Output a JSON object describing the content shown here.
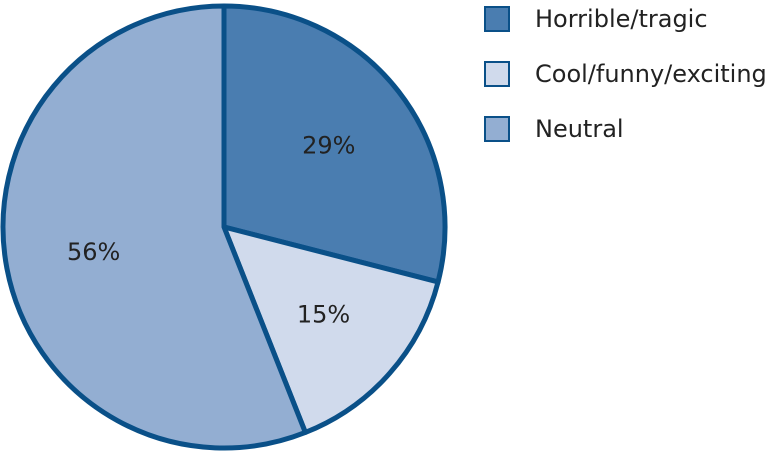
{
  "chart_data": {
    "type": "pie",
    "title": "",
    "slices": [
      {
        "label": "Horrible/tragic",
        "value": 29,
        "display": "29%",
        "color": "#4a7db0"
      },
      {
        "label": "Cool/funny/exciting",
        "value": 15,
        "display": "15%",
        "color": "#d0daec"
      },
      {
        "label": "Neutral",
        "value": 56,
        "display": "56%",
        "color": "#93aed2"
      }
    ],
    "border_color": "#0a5088",
    "legend_position": "top-right"
  }
}
